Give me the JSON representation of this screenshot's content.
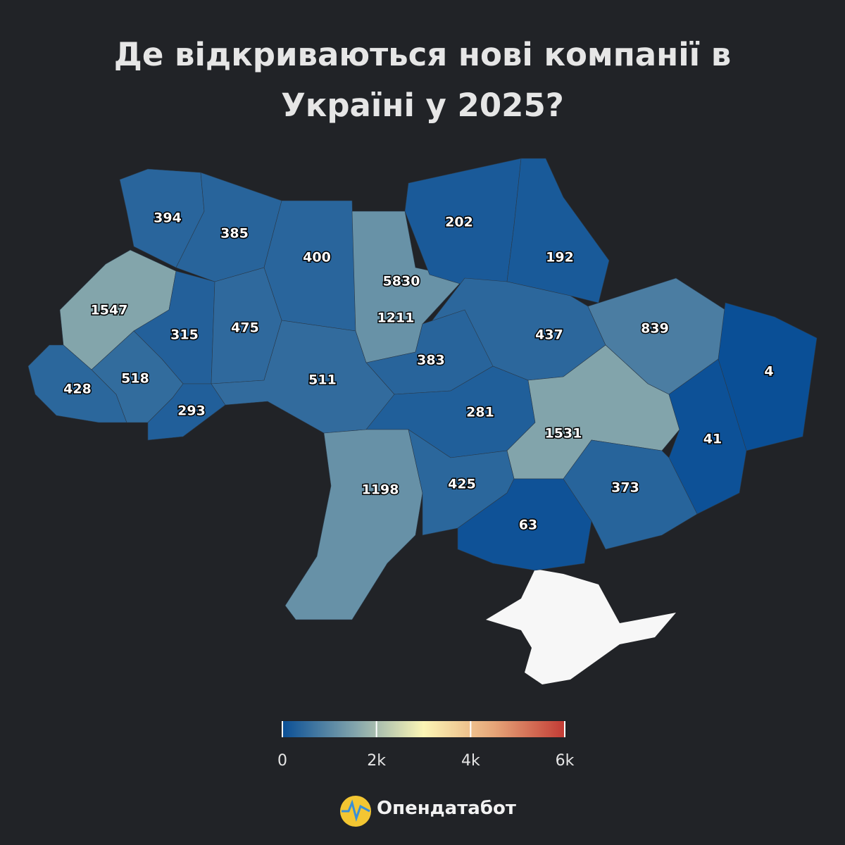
{
  "chart_data": {
    "type": "choropleth",
    "title": "Де відкриваються нові компанії в Україні у 2025?",
    "values": [
      394,
      385,
      400,
      5830,
      1211,
      202,
      192,
      1547,
      315,
      475,
      437,
      839,
      4,
      383,
      428,
      518,
      293,
      511,
      281,
      1531,
      41,
      1198,
      425,
      63,
      373
    ],
    "colorscale": [
      "#0a4f96",
      "#7fa2ab",
      "#fbf5b5",
      "#e6a578",
      "#c23b35"
    ],
    "clim": [
      0,
      6000
    ],
    "cticks": [
      0,
      {
        "value": 2000,
        "label": "2k"
      },
      {
        "value": 4000,
        "label": "4k"
      },
      {
        "value": 6000,
        "label": "6k"
      }
    ]
  },
  "brand": "Опендатабот"
}
